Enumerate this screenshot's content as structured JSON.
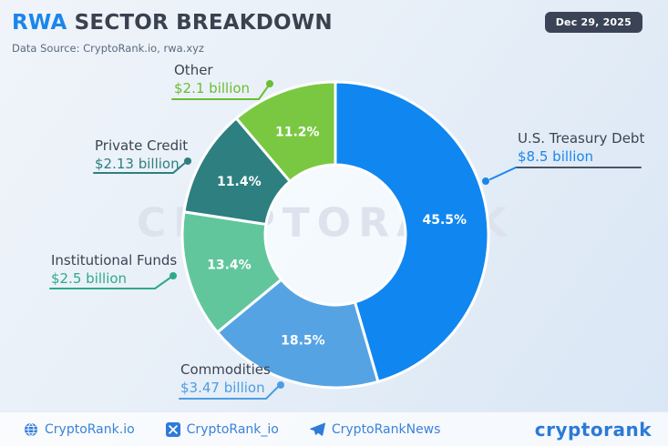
{
  "header": {
    "title_highlight": "RWA",
    "title_rest": " SECTOR BREAKDOWN",
    "subtitle": "Data Source: CryptoRank.io, rwa.xyz",
    "date_badge": "Dec 29, 2025"
  },
  "watermark": "CRYPTORANK",
  "chart_data": {
    "type": "pie",
    "variant": "donut",
    "title": "RWA Sector Breakdown",
    "unit": "USD billions",
    "start_angle": "top",
    "direction": "clockwise",
    "legend": false,
    "sectors": [
      {
        "id": "us-treasury-debt",
        "label": "U.S. Treasury Debt",
        "value": "$8.5 billion",
        "value_num": 8.5,
        "percent": 45.5,
        "percent_label": "45.5%",
        "color": "#1086f0",
        "value_color": "#1a86ec",
        "leader_color": "#1a86ec",
        "underline_color": "#4a5466"
      },
      {
        "id": "commodities",
        "label": "Commodities",
        "value": "$3.47 billion",
        "value_num": 3.47,
        "percent": 18.5,
        "percent_label": "18.5%",
        "color": "#56a3e4",
        "value_color": "#4d9de2",
        "leader_color": "#4d9de2",
        "underline_color": "#4d9de2"
      },
      {
        "id": "institutional-funds",
        "label": "Institutional Funds",
        "value": "$2.5 billion",
        "value_num": 2.5,
        "percent": 13.4,
        "percent_label": "13.4%",
        "color": "#62c69c",
        "value_color": "#2fa98c",
        "leader_color": "#2fa98c",
        "underline_color": "#2fa98c"
      },
      {
        "id": "private-credit",
        "label": "Private Credit",
        "value": "$2.13 billion",
        "value_num": 2.13,
        "percent": 11.4,
        "percent_label": "11.4%",
        "color": "#2e7f80",
        "value_color": "#2e7f80",
        "leader_color": "#2e7f80",
        "underline_color": "#2e7f80"
      },
      {
        "id": "other",
        "label": "Other",
        "value": "$2.1 billion",
        "value_num": 2.1,
        "percent": 11.2,
        "percent_label": "11.2%",
        "color": "#7ac842",
        "value_color": "#6abe33",
        "leader_color": "#6abe33",
        "underline_color": "#6abe33"
      }
    ]
  },
  "footer": {
    "links": [
      {
        "icon": "globe-icon",
        "label": "CryptoRank.io"
      },
      {
        "icon": "x-icon",
        "label": "CryptoRank_io"
      },
      {
        "icon": "telegram-icon",
        "label": "CryptoRankNews"
      }
    ],
    "brand": "cryptorank",
    "link_color": "#3b82da"
  }
}
